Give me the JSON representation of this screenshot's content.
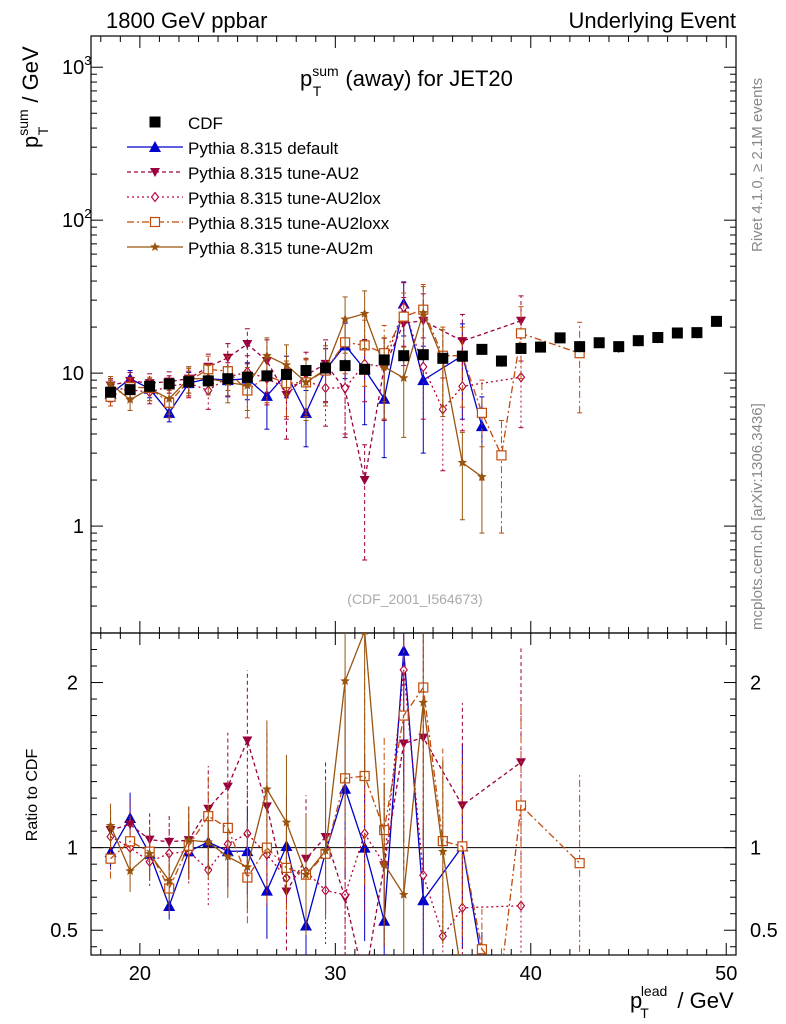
{
  "header": {
    "left": "1800 GeV ppbar",
    "right": "Underlying Event"
  },
  "side_labels": {
    "rivet": "Rivet 4.1.0, ≥ 2.1M events",
    "mcplots": "mcplots.cern.ch [arXiv:1306.3436]"
  },
  "watermark": "(CDF_2001_I564673)",
  "colors": {
    "cdf": "#000000",
    "default": "#0000cc",
    "au2": "#99003f",
    "au2lox": "#b3003a",
    "au2loxx": "#c24a0a",
    "au2m": "#99540f"
  },
  "chart_data": {
    "type": "line",
    "title_main": "p",
    "title_sup": "sum",
    "title_sub": "T",
    "title_rest": " (away) for JET20",
    "ylabel_main": "p",
    "ylabel_sup": "sum",
    "ylabel_sub": "T",
    "ylabel_rest": " / GeV",
    "xlabel_main": "p",
    "xlabel_sup": "lead",
    "xlabel_sub": "T",
    "xlabel_rest": " / GeV",
    "ratio_ylabel": "Ratio to CDF",
    "xlim": [
      17.5,
      50.5
    ],
    "ylim": [
      0.2,
      1600
    ],
    "ratio_ylim": [
      0.35,
      2.3
    ],
    "yscale": "log",
    "x_ticks": [
      20,
      30,
      40,
      50
    ],
    "y_ticks": [
      {
        "v": 1,
        "base": "1",
        "exp": ""
      },
      {
        "v": 10,
        "base": "10",
        "exp": ""
      },
      {
        "v": 100,
        "base": "10",
        "exp": "2"
      },
      {
        "v": 1000,
        "base": "10",
        "exp": "3"
      }
    ],
    "ratio_ticks": [
      0.5,
      1,
      2
    ],
    "legend": [
      {
        "label": "CDF",
        "key": "cdf"
      },
      {
        "label": "Pythia 8.315 default",
        "key": "default"
      },
      {
        "label": "Pythia 8.315 tune-AU2",
        "key": "au2"
      },
      {
        "label": "Pythia 8.315 tune-AU2lox",
        "key": "au2lox"
      },
      {
        "label": "Pythia 8.315 tune-AU2loxx",
        "key": "au2loxx"
      },
      {
        "label": "Pythia 8.315 tune-AU2m",
        "key": "au2m"
      }
    ],
    "cdf": {
      "x": [
        18.5,
        19.5,
        20.5,
        21.5,
        22.5,
        23.5,
        24.5,
        25.5,
        26.5,
        27.5,
        28.5,
        29.5,
        30.5,
        31.5,
        32.5,
        33.5,
        34.5,
        35.5,
        36.5,
        37.5,
        38.5,
        39.5,
        40.5,
        41.5,
        42.5,
        43.5,
        44.5,
        45.5,
        46.5,
        47.5,
        48.5,
        49.5
      ],
      "y": [
        7.5,
        7.8,
        8.2,
        8.5,
        8.8,
        8.9,
        9.2,
        9.4,
        9.6,
        9.8,
        10.4,
        10.8,
        11.2,
        10.6,
        12.2,
        13.0,
        13.2,
        12.5,
        12.9,
        14.3,
        12.0,
        14.5,
        14.8,
        17.0,
        14.9,
        15.8,
        14.9,
        16.3,
        17.1,
        18.3,
        18.4,
        21.8
      ],
      "err": [
        0.4,
        0.4,
        0.5,
        0.5,
        0.5,
        0.5,
        0.5,
        0.5,
        0.6,
        0.6,
        0.6,
        0.7,
        0.7,
        0.7,
        0.8,
        0.8,
        0.9,
        0.9,
        1.0,
        1.0,
        1.0,
        1.1,
        1.1,
        1.2,
        1.2,
        1.2,
        1.3,
        1.3,
        1.4,
        1.4,
        1.5,
        1.5
      ]
    },
    "series": [
      {
        "name": "Pythia 8.315 default",
        "key": "default",
        "marker": "triangle",
        "dash": "",
        "x": [
          18.5,
          19.5,
          20.5,
          21.5,
          22.5,
          23.5,
          24.5,
          25.5,
          26.5,
          27.5,
          28.5,
          29.5,
          30.5,
          31.5,
          32.5,
          33.5,
          34.5,
          36.5,
          37.5
        ],
        "y": [
          7.3,
          9.2,
          7.9,
          5.5,
          8.6,
          9.2,
          9.0,
          9.2,
          7.1,
          9.9,
          5.5,
          10.5,
          15.2,
          10.6,
          6.8,
          28.5,
          9.0,
          13.0,
          4.5
        ],
        "err": [
          0.8,
          1.2,
          1.0,
          0.7,
          1.5,
          1.8,
          2.0,
          2.5,
          2.8,
          3.0,
          2.2,
          4.0,
          6.0,
          6.0,
          4.0,
          11.0,
          6.0,
          8.0,
          2.5
        ]
      },
      {
        "name": "Pythia 8.315 tune-AU2",
        "key": "au2",
        "marker": "triangle-down",
        "dash": "4,3",
        "x": [
          18.5,
          19.5,
          20.5,
          21.5,
          22.5,
          23.5,
          24.5,
          25.5,
          26.5,
          27.5,
          28.5,
          29.5,
          30.5,
          31.5,
          32.5,
          33.5,
          34.5,
          36.5,
          39.5
        ],
        "y": [
          8.3,
          8.9,
          8.6,
          8.8,
          9.2,
          11.0,
          12.6,
          15.5,
          12.0,
          7.2,
          9.7,
          11.5,
          7.8,
          2.0,
          10.9,
          21.2,
          22.0,
          16.2,
          22.0
        ],
        "err": [
          0.9,
          1.2,
          1.3,
          1.4,
          1.8,
          2.3,
          3.0,
          4.0,
          4.5,
          3.5,
          4.0,
          5.0,
          4.0,
          1.4,
          6.0,
          10.0,
          11.0,
          8.0,
          10.0
        ]
      },
      {
        "name": "Pythia 8.315 tune-AU2lox",
        "key": "au2lox",
        "marker": "diamond",
        "dash": "2,3",
        "x": [
          18.5,
          19.5,
          20.5,
          21.5,
          22.5,
          23.5,
          24.5,
          25.5,
          26.5,
          27.5,
          28.5,
          29.5,
          30.5,
          31.5,
          32.5,
          33.5,
          34.5,
          35.5,
          36.5,
          39.5
        ],
        "y": [
          8.0,
          7.8,
          7.5,
          8.2,
          8.6,
          7.7,
          9.4,
          10.2,
          9.2,
          8.0,
          8.9,
          8.0,
          8.0,
          11.5,
          11.0,
          27.0,
          11.0,
          5.8,
          8.2,
          9.4
        ],
        "err": [
          1.0,
          1.2,
          1.2,
          1.4,
          1.7,
          1.9,
          2.3,
          2.8,
          3.0,
          3.0,
          3.5,
          3.5,
          4.0,
          5.0,
          6.0,
          12.0,
          6.0,
          3.5,
          4.0,
          5.0
        ]
      },
      {
        "name": "Pythia 8.315 tune-AU2loxx",
        "key": "au2loxx",
        "marker": "square",
        "dash": "7,3,2,3",
        "x": [
          18.5,
          19.5,
          20.5,
          21.5,
          22.5,
          23.5,
          24.5,
          25.5,
          26.5,
          27.5,
          28.5,
          29.5,
          30.5,
          31.5,
          32.5,
          33.5,
          34.5,
          35.5,
          36.5,
          37.5,
          38.5,
          39.5,
          42.5
        ],
        "y": [
          7.0,
          8.1,
          8.0,
          6.4,
          8.9,
          10.6,
          10.3,
          7.7,
          9.6,
          8.6,
          8.7,
          10.4,
          15.9,
          15.2,
          13.5,
          23.4,
          26.0,
          13.0,
          13.0,
          5.5,
          2.9,
          18.2,
          13.5
        ],
        "err": [
          0.9,
          1.2,
          1.4,
          1.3,
          1.8,
          2.3,
          2.6,
          2.6,
          3.2,
          3.4,
          3.5,
          4.0,
          6.0,
          7.0,
          7.0,
          10.0,
          12.0,
          7.0,
          7.0,
          3.5,
          2.0,
          9.0,
          8.0
        ]
      },
      {
        "name": "Pythia 8.315 tune-AU2m",
        "key": "au2m",
        "marker": "star",
        "dash": "",
        "x": [
          18.5,
          19.5,
          20.5,
          21.5,
          22.5,
          23.5,
          24.5,
          25.5,
          26.5,
          27.5,
          28.5,
          29.5,
          30.5,
          31.5,
          32.5,
          33.5,
          34.5,
          35.5,
          36.5,
          37.5
        ],
        "y": [
          8.5,
          6.7,
          7.9,
          6.8,
          9.2,
          9.2,
          8.7,
          8.3,
          13.0,
          11.3,
          8.7,
          10.6,
          22.5,
          24.5,
          11.0,
          9.3,
          24.8,
          12.2,
          2.6,
          2.1
        ],
        "err": [
          1.0,
          1.0,
          1.3,
          1.4,
          1.8,
          2.0,
          2.3,
          2.6,
          4.0,
          4.0,
          3.8,
          4.5,
          9.0,
          10.0,
          6.0,
          5.5,
          12.0,
          7.0,
          1.5,
          1.2
        ]
      }
    ]
  }
}
